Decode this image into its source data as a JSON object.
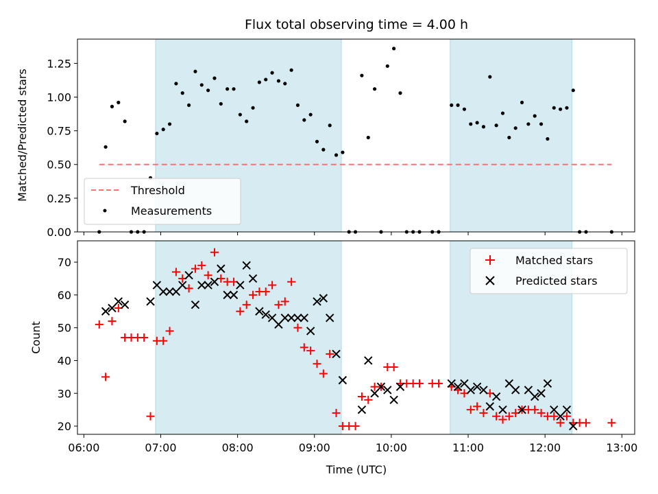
{
  "chart_data": [
    {
      "type": "scatter",
      "title": "Flux total observing time = 4.00 h",
      "ylabel": "Matched/Predicted stars",
      "xlim": [
        "05:55",
        "13:10"
      ],
      "ylim": [
        0,
        1.43
      ],
      "yticks": [
        "0.00",
        "0.25",
        "0.50",
        "0.75",
        "1.00",
        "1.25"
      ],
      "legend_position": "lower-left",
      "shaded_intervals": [
        [
          "06:56",
          "09:21"
        ],
        [
          "10:46",
          "12:21"
        ]
      ],
      "shade_color": "#add8e6",
      "threshold": {
        "name": "Threshold",
        "value": 0.5,
        "x_range": [
          "06:12",
          "12:52"
        ],
        "color": "#ff7070"
      },
      "measurements": {
        "name": "Measurements",
        "color": "#000000",
        "points": [
          [
            "06:12",
            0.0
          ],
          [
            "06:17",
            0.63
          ],
          [
            "06:22",
            0.93
          ],
          [
            "06:27",
            0.96
          ],
          [
            "06:32",
            0.82
          ],
          [
            "06:37",
            0.0
          ],
          [
            "06:42",
            0.0
          ],
          [
            "06:47",
            0.0
          ],
          [
            "06:52",
            0.4
          ],
          [
            "06:57",
            0.73
          ],
          [
            "07:02",
            0.76
          ],
          [
            "07:07",
            0.8
          ],
          [
            "07:12",
            1.1
          ],
          [
            "07:17",
            1.03
          ],
          [
            "07:22",
            0.94
          ],
          [
            "07:27",
            1.19
          ],
          [
            "07:32",
            1.09
          ],
          [
            "07:37",
            1.05
          ],
          [
            "07:42",
            1.14
          ],
          [
            "07:47",
            0.95
          ],
          [
            "07:52",
            1.06
          ],
          [
            "07:57",
            1.06
          ],
          [
            "08:02",
            0.87
          ],
          [
            "08:07",
            0.82
          ],
          [
            "08:12",
            0.92
          ],
          [
            "08:17",
            1.11
          ],
          [
            "08:22",
            1.13
          ],
          [
            "08:27",
            1.18
          ],
          [
            "08:32",
            1.12
          ],
          [
            "08:37",
            1.1
          ],
          [
            "08:42",
            1.2
          ],
          [
            "08:47",
            0.94
          ],
          [
            "08:52",
            0.83
          ],
          [
            "08:57",
            0.87
          ],
          [
            "09:02",
            0.67
          ],
          [
            "09:07",
            0.61
          ],
          [
            "09:12",
            0.79
          ],
          [
            "09:17",
            0.57
          ],
          [
            "09:22",
            0.59
          ],
          [
            "09:27",
            0.0
          ],
          [
            "09:32",
            0.0
          ],
          [
            "09:37",
            1.16
          ],
          [
            "09:42",
            0.7
          ],
          [
            "09:47",
            1.06
          ],
          [
            "09:52",
            0.0
          ],
          [
            "09:57",
            1.23
          ],
          [
            "10:02",
            1.36
          ],
          [
            "10:07",
            1.03
          ],
          [
            "10:12",
            0.0
          ],
          [
            "10:17",
            0.0
          ],
          [
            "10:22",
            0.0
          ],
          [
            "10:32",
            0.0
          ],
          [
            "10:37",
            0.0
          ],
          [
            "10:47",
            0.94
          ],
          [
            "10:52",
            0.94
          ],
          [
            "10:57",
            0.91
          ],
          [
            "11:02",
            0.8
          ],
          [
            "11:07",
            0.81
          ],
          [
            "11:12",
            0.78
          ],
          [
            "11:17",
            1.15
          ],
          [
            "11:22",
            0.79
          ],
          [
            "11:27",
            0.88
          ],
          [
            "11:32",
            0.7
          ],
          [
            "11:37",
            0.77
          ],
          [
            "11:42",
            0.96
          ],
          [
            "11:47",
            0.8
          ],
          [
            "11:52",
            0.86
          ],
          [
            "11:57",
            0.8
          ],
          [
            "12:02",
            0.69
          ],
          [
            "12:07",
            0.92
          ],
          [
            "12:12",
            0.91
          ],
          [
            "12:17",
            0.92
          ],
          [
            "12:22",
            1.05
          ],
          [
            "12:27",
            0.0
          ],
          [
            "12:32",
            0.0
          ],
          [
            "12:52",
            0.0
          ]
        ]
      }
    },
    {
      "type": "scatter",
      "xlabel": "Time (UTC)",
      "ylabel": "Count",
      "xlim": [
        "05:55",
        "13:10"
      ],
      "ylim": [
        17.5,
        76.5
      ],
      "xticks": [
        "06:00",
        "07:00",
        "08:00",
        "09:00",
        "10:00",
        "11:00",
        "12:00",
        "13:00"
      ],
      "yticks": [
        "20",
        "30",
        "40",
        "50",
        "60",
        "70"
      ],
      "legend_position": "upper-right",
      "shaded_intervals": [
        [
          "06:56",
          "09:21"
        ],
        [
          "10:46",
          "12:21"
        ]
      ],
      "shade_color": "#add8e6",
      "series": [
        {
          "name": "Matched stars",
          "marker": "plus",
          "color": "#ff0000",
          "points": [
            [
              "06:12",
              51
            ],
            [
              "06:17",
              35
            ],
            [
              "06:22",
              52
            ],
            [
              "06:27",
              56
            ],
            [
              "06:32",
              47
            ],
            [
              "06:37",
              47
            ],
            [
              "06:42",
              47
            ],
            [
              "06:47",
              47
            ],
            [
              "06:52",
              23
            ],
            [
              "06:57",
              46
            ],
            [
              "07:02",
              46
            ],
            [
              "07:07",
              49
            ],
            [
              "07:12",
              67
            ],
            [
              "07:17",
              65
            ],
            [
              "07:22",
              62
            ],
            [
              "07:27",
              68
            ],
            [
              "07:32",
              69
            ],
            [
              "07:37",
              66
            ],
            [
              "07:42",
              73
            ],
            [
              "07:47",
              65
            ],
            [
              "07:52",
              64
            ],
            [
              "07:57",
              64
            ],
            [
              "08:02",
              55
            ],
            [
              "08:07",
              57
            ],
            [
              "08:12",
              60
            ],
            [
              "08:17",
              61
            ],
            [
              "08:22",
              61
            ],
            [
              "08:27",
              63
            ],
            [
              "08:32",
              57
            ],
            [
              "08:37",
              58
            ],
            [
              "08:42",
              64
            ],
            [
              "08:47",
              50
            ],
            [
              "08:52",
              44
            ],
            [
              "08:57",
              43
            ],
            [
              "09:02",
              39
            ],
            [
              "09:07",
              36
            ],
            [
              "09:12",
              42
            ],
            [
              "09:17",
              24
            ],
            [
              "09:22",
              20
            ],
            [
              "09:27",
              20
            ],
            [
              "09:32",
              20
            ],
            [
              "09:37",
              29
            ],
            [
              "09:42",
              28
            ],
            [
              "09:47",
              32
            ],
            [
              "09:52",
              32
            ],
            [
              "09:57",
              38
            ],
            [
              "10:02",
              38
            ],
            [
              "10:07",
              33
            ],
            [
              "10:12",
              33
            ],
            [
              "10:17",
              33
            ],
            [
              "10:22",
              33
            ],
            [
              "10:32",
              33
            ],
            [
              "10:37",
              33
            ],
            [
              "10:47",
              32
            ],
            [
              "10:52",
              31
            ],
            [
              "10:57",
              30
            ],
            [
              "11:02",
              25
            ],
            [
              "11:07",
              26
            ],
            [
              "11:12",
              24
            ],
            [
              "11:17",
              30
            ],
            [
              "11:22",
              23
            ],
            [
              "11:27",
              22
            ],
            [
              "11:32",
              23
            ],
            [
              "11:37",
              24
            ],
            [
              "11:42",
              25
            ],
            [
              "11:47",
              25
            ],
            [
              "11:52",
              25
            ],
            [
              "11:57",
              24
            ],
            [
              "12:02",
              23
            ],
            [
              "12:07",
              23
            ],
            [
              "12:12",
              21
            ],
            [
              "12:17",
              23
            ],
            [
              "12:22",
              21
            ],
            [
              "12:27",
              21
            ],
            [
              "12:32",
              21
            ],
            [
              "12:52",
              21
            ]
          ]
        },
        {
          "name": "Predicted stars",
          "marker": "x",
          "color": "#000000",
          "points": [
            [
              "06:17",
              55
            ],
            [
              "06:22",
              56
            ],
            [
              "06:27",
              58
            ],
            [
              "06:32",
              57
            ],
            [
              "06:52",
              58
            ],
            [
              "06:57",
              63
            ],
            [
              "07:02",
              61
            ],
            [
              "07:07",
              61
            ],
            [
              "07:12",
              61
            ],
            [
              "07:17",
              63
            ],
            [
              "07:22",
              66
            ],
            [
              "07:27",
              57
            ],
            [
              "07:32",
              63
            ],
            [
              "07:37",
              63
            ],
            [
              "07:42",
              64
            ],
            [
              "07:47",
              68
            ],
            [
              "07:52",
              60
            ],
            [
              "07:57",
              60
            ],
            [
              "08:02",
              63
            ],
            [
              "08:07",
              69
            ],
            [
              "08:12",
              65
            ],
            [
              "08:17",
              55
            ],
            [
              "08:22",
              54
            ],
            [
              "08:27",
              53
            ],
            [
              "08:32",
              51
            ],
            [
              "08:37",
              53
            ],
            [
              "08:42",
              53
            ],
            [
              "08:47",
              53
            ],
            [
              "08:52",
              53
            ],
            [
              "08:57",
              49
            ],
            [
              "09:02",
              58
            ],
            [
              "09:07",
              59
            ],
            [
              "09:12",
              53
            ],
            [
              "09:17",
              42
            ],
            [
              "09:22",
              34
            ],
            [
              "09:37",
              25
            ],
            [
              "09:42",
              40
            ],
            [
              "09:47",
              30
            ],
            [
              "09:52",
              32
            ],
            [
              "09:57",
              31
            ],
            [
              "10:02",
              28
            ],
            [
              "10:07",
              32
            ],
            [
              "10:47",
              33
            ],
            [
              "10:52",
              32
            ],
            [
              "10:57",
              33
            ],
            [
              "11:02",
              31
            ],
            [
              "11:07",
              32
            ],
            [
              "11:12",
              31
            ],
            [
              "11:17",
              26
            ],
            [
              "11:22",
              29
            ],
            [
              "11:27",
              25
            ],
            [
              "11:32",
              33
            ],
            [
              "11:37",
              31
            ],
            [
              "11:42",
              25
            ],
            [
              "11:47",
              31
            ],
            [
              "11:52",
              29
            ],
            [
              "11:57",
              30
            ],
            [
              "12:02",
              33
            ],
            [
              "12:07",
              25
            ],
            [
              "12:12",
              23
            ],
            [
              "12:17",
              25
            ],
            [
              "12:22",
              20
            ]
          ]
        }
      ]
    }
  ]
}
